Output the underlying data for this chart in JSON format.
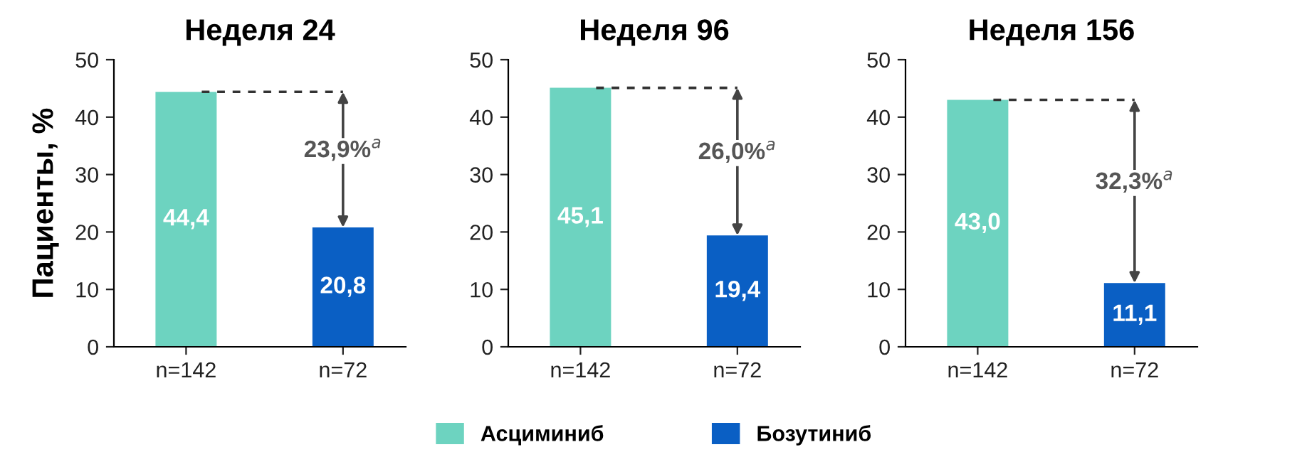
{
  "chart_data": [
    {
      "type": "bar",
      "title": "Неделя 24",
      "ylabel": "Пациенты, %",
      "categories": [
        "n=142",
        "n=72"
      ],
      "series": [
        {
          "color": "#6dd3c0",
          "values": [
            44.4,
            null
          ],
          "value_labels": [
            "44,4",
            null
          ]
        },
        {
          "color": "#0a5fc4",
          "values": [
            null,
            20.8
          ],
          "value_labels": [
            null,
            "20,8"
          ]
        }
      ],
      "ylim": [
        0,
        50
      ],
      "yticks": [
        0,
        10,
        20,
        30,
        40,
        50
      ],
      "grid": false,
      "ref_lines": [
        {
          "axis": "y",
          "value": 44.4,
          "line_style": "dashed",
          "color": "#333333"
        }
      ],
      "annotations": [
        "23,9%$^{a}$"
      ]
    },
    {
      "type": "bar",
      "title": "Неделя 96",
      "categories": [
        "n=142",
        "n=72"
      ],
      "series": [
        {
          "name": "Асциминиб",
          "color": "#6dd3c0",
          "values": [
            45.1,
            null
          ],
          "value_labels": [
            "45,1",
            null
          ]
        },
        {
          "name": "Бозутиниб",
          "color": "#0a5fc4",
          "values": [
            null,
            19.4
          ],
          "value_labels": [
            null,
            "19,4"
          ]
        }
      ],
      "ylim": [
        0,
        50
      ],
      "yticks": [
        0,
        10,
        20,
        30,
        40,
        50
      ],
      "grid": false,
      "legend": "bottom",
      "ref_lines": [
        {
          "axis": "y",
          "value": 45.1,
          "line_style": "dashed",
          "color": "#333333"
        }
      ],
      "annotations": [
        "26,0%$^{a}$"
      ]
    },
    {
      "type": "bar",
      "title": "Неделя 156",
      "categories": [
        "n=142",
        "n=72"
      ],
      "series": [
        {
          "color": "#6dd3c0",
          "values": [
            43.0,
            null
          ],
          "value_labels": [
            "43,0",
            null
          ]
        },
        {
          "color": "#0a5fc4",
          "values": [
            null,
            11.1
          ],
          "value_labels": [
            null,
            "11,1"
          ]
        }
      ],
      "ylim": [
        0,
        50
      ],
      "yticks": [
        0,
        10,
        20,
        30,
        40,
        50
      ],
      "grid": false,
      "ref_lines": [
        {
          "axis": "y",
          "value": 43.0,
          "line_style": "dashed",
          "color": "#333333"
        }
      ],
      "annotations": [
        "32,3%$^{a}$"
      ]
    }
  ]
}
